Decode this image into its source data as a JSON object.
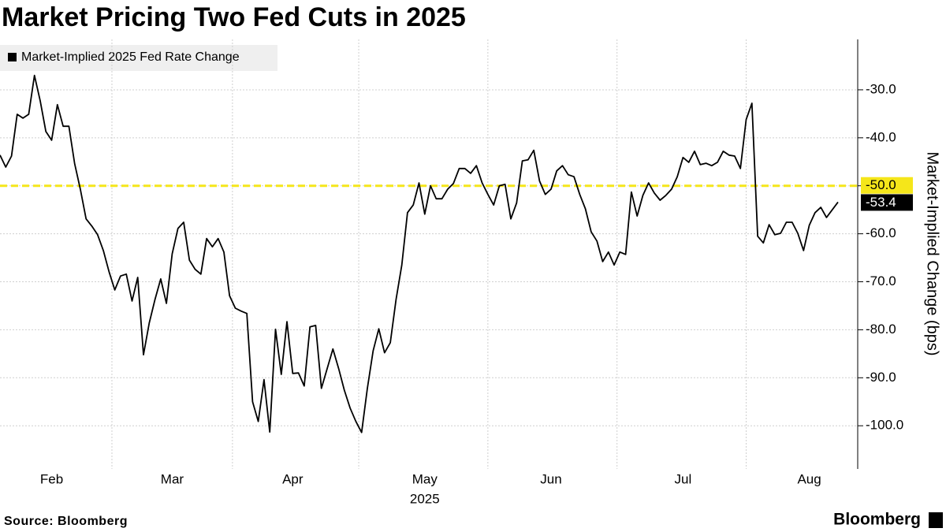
{
  "chart_data": {
    "type": "line",
    "title": "Market Pricing Two Fed Cuts in 2025",
    "y_label": "Market-Implied Change (bps)",
    "x_sublabel": "2025",
    "source": "Source: Bloomberg",
    "brand": "Bloomberg",
    "categories": [
      null,
      null,
      null,
      null,
      null,
      null,
      null,
      null,
      null,
      "Feb",
      null,
      null,
      null,
      null,
      null,
      null,
      null,
      null,
      null,
      null,
      null,
      null,
      null,
      null,
      null,
      null,
      null,
      null,
      null,
      null,
      "Mar",
      null,
      null,
      null,
      null,
      null,
      null,
      null,
      null,
      null,
      null,
      null,
      null,
      null,
      null,
      null,
      null,
      null,
      null,
      null,
      null,
      "Apr",
      null,
      null,
      null,
      null,
      null,
      null,
      null,
      null,
      null,
      null,
      null,
      null,
      null,
      null,
      null,
      null,
      null,
      null,
      null,
      null,
      null,
      null,
      "May",
      null,
      null,
      null,
      null,
      null,
      null,
      null,
      null,
      null,
      null,
      null,
      null,
      null,
      null,
      null,
      null,
      null,
      null,
      null,
      null,
      null,
      "Jun",
      null,
      null,
      null,
      null,
      null,
      null,
      null,
      null,
      null,
      null,
      null,
      null,
      null,
      null,
      null,
      null,
      null,
      null,
      null,
      null,
      null,
      null,
      "Jul",
      null,
      null,
      null,
      null,
      null,
      null,
      null,
      null,
      null,
      null,
      null,
      null,
      null,
      null,
      null,
      null,
      null,
      null,
      null,
      null,
      null,
      "Aug",
      null,
      null,
      null,
      null,
      null
    ],
    "series": [
      {
        "name": "Market-Implied 2025 Fed Rate Change",
        "color": "#000000",
        "last_label": "-53.4",
        "values": [
          -43.6,
          -46.1,
          -43.8,
          -35.1,
          -35.9,
          -35.1,
          -27.0,
          -32.3,
          -38.7,
          -40.5,
          -33.1,
          -37.6,
          -37.6,
          -45.4,
          -50.7,
          -56.9,
          -58.4,
          -60.2,
          -63.5,
          -67.9,
          -71.7,
          -68.8,
          -68.4,
          -74.0,
          -69.1,
          -85.2,
          -78.6,
          -73.7,
          -69.4,
          -74.5,
          -64.2,
          -58.9,
          -57.6,
          -65.5,
          -67.4,
          -68.4,
          -61.0,
          -62.7,
          -61.0,
          -63.8,
          -72.9,
          -75.5,
          -76.1,
          -76.6,
          -95.0,
          -99.1,
          -90.4,
          -101.3,
          -79.9,
          -89.3,
          -78.3,
          -89.1,
          -89.0,
          -91.7,
          -79.4,
          -79.1,
          -92.2,
          -88.1,
          -84.0,
          -88.1,
          -92.6,
          -96.3,
          -99.1,
          -101.4,
          -92.2,
          -84.4,
          -79.8,
          -84.8,
          -82.7,
          -73.7,
          -66.5,
          -55.6,
          -54.0,
          -49.4,
          -55.9,
          -50.0,
          -52.7,
          -52.7,
          -50.7,
          -49.5,
          -46.4,
          -46.4,
          -47.4,
          -45.8,
          -49.4,
          -51.8,
          -54.0,
          -50.0,
          -49.7,
          -56.9,
          -53.6,
          -44.8,
          -44.6,
          -42.6,
          -49.0,
          -51.8,
          -50.7,
          -46.9,
          -45.8,
          -47.7,
          -48.1,
          -51.8,
          -54.8,
          -59.6,
          -61.5,
          -65.8,
          -63.8,
          -66.5,
          -63.8,
          -64.3,
          -51.3,
          -56.3,
          -52.0,
          -49.4,
          -51.5,
          -53.0,
          -52.0,
          -50.7,
          -48.1,
          -44.1,
          -45.1,
          -42.8,
          -45.6,
          -45.3,
          -45.8,
          -45.1,
          -42.8,
          -43.6,
          -43.8,
          -46.4,
          -36.2,
          -32.8,
          -60.5,
          -61.9,
          -58.1,
          -60.2,
          -59.9,
          -57.6,
          -57.6,
          -59.9,
          -63.5,
          -58.2,
          -55.6,
          -54.5,
          -56.6,
          -55.0,
          -53.4
        ]
      }
    ],
    "reference_line": {
      "value": -50,
      "label": "-50.0",
      "color": "#f5e61a"
    },
    "ylim": [
      -109,
      -19.5
    ],
    "yticks": [
      {
        "value": -30,
        "label": "-30.0"
      },
      {
        "value": -40,
        "label": "-40.0"
      },
      {
        "value": -50,
        "label": "-50.0"
      },
      {
        "value": -60,
        "label": "-60.0"
      },
      {
        "value": -70,
        "label": "-70.0"
      },
      {
        "value": -80,
        "label": "-80.0"
      },
      {
        "value": -90,
        "label": "-90.0"
      },
      {
        "value": -100,
        "label": "-100.0"
      }
    ],
    "grid": true,
    "y_axis_side": "right"
  }
}
